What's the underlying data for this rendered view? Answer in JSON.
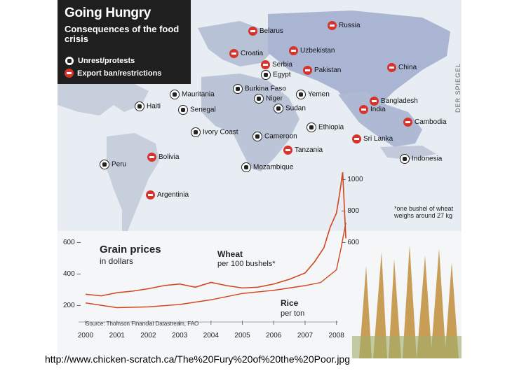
{
  "legend": {
    "title": "Going Hungry",
    "subtitle": "Consequences of the food crisis",
    "unrest_label": "Unrest/protests",
    "ban_label": "Export ban/restrictions"
  },
  "credit": "DER SPIEGEL",
  "countries": [
    {
      "name": "Russia",
      "symbol": "ban"
    },
    {
      "name": "Belarus",
      "symbol": "ban"
    },
    {
      "name": "Croatia",
      "symbol": "ban"
    },
    {
      "name": "Serbia",
      "symbol": "ban"
    },
    {
      "name": "Uzbekistan",
      "symbol": "ban"
    },
    {
      "name": "Pakistan",
      "symbol": "ban"
    },
    {
      "name": "Egypt",
      "symbol": "unrest"
    },
    {
      "name": "China",
      "symbol": "ban"
    },
    {
      "name": "Mauritania",
      "symbol": "unrest"
    },
    {
      "name": "Burkina Faso",
      "symbol": "unrest"
    },
    {
      "name": "Yemen",
      "symbol": "unrest"
    },
    {
      "name": "Niger",
      "symbol": "unrest"
    },
    {
      "name": "Haiti",
      "symbol": "unrest"
    },
    {
      "name": "Senegal",
      "symbol": "unrest"
    },
    {
      "name": "Sudan",
      "symbol": "unrest"
    },
    {
      "name": "Bangladesh",
      "symbol": "ban"
    },
    {
      "name": "India",
      "symbol": "ban"
    },
    {
      "name": "Ethiopia",
      "symbol": "unrest"
    },
    {
      "name": "Cambodia",
      "symbol": "ban"
    },
    {
      "name": "Ivory Coast",
      "symbol": "unrest"
    },
    {
      "name": "Cameroon",
      "symbol": "unrest"
    },
    {
      "name": "Sri Lanka",
      "symbol": "ban"
    },
    {
      "name": "Tanzania",
      "symbol": "ban"
    },
    {
      "name": "Indonesia",
      "symbol": "unrest"
    },
    {
      "name": "Peru",
      "symbol": "unrest"
    },
    {
      "name": "Bolivia",
      "symbol": "ban"
    },
    {
      "name": "Mozambique",
      "symbol": "unrest"
    },
    {
      "name": "Argentinia",
      "symbol": "ban"
    }
  ],
  "chart_data": {
    "type": "line",
    "title": "Grain prices",
    "subtitle": "in dollars",
    "source": "Source: Thomson Financial Datastream, FAO",
    "note": "*one bushel of wheat weighs around 27 kg",
    "x_ticks": [
      "2000",
      "2001",
      "2002",
      "2003",
      "2004",
      "2005",
      "2006",
      "2007",
      "2008"
    ],
    "left_axis_ticks": [
      "200",
      "400",
      "600"
    ],
    "right_axis_ticks": [
      "600",
      "800",
      "1000"
    ],
    "series": [
      {
        "name": "Wheat",
        "unit": "per 100 bushels*",
        "color": "#d2461e",
        "axis": "right",
        "x": [
          2000.0,
          2000.5,
          2001.0,
          2001.5,
          2002.0,
          2002.5,
          2003.0,
          2003.5,
          2004.0,
          2004.5,
          2005.0,
          2005.5,
          2006.0,
          2006.5,
          2007.0,
          2007.3,
          2007.6,
          2007.8,
          2008.0,
          2008.1,
          2008.2,
          2008.3
        ],
        "y": [
          265,
          255,
          275,
          285,
          300,
          320,
          330,
          310,
          340,
          320,
          305,
          310,
          330,
          360,
          400,
          470,
          560,
          690,
          780,
          900,
          1040,
          620
        ]
      },
      {
        "name": "Rice",
        "unit": "per ton",
        "color": "#d2461e",
        "axis": "left",
        "x": [
          2000.0,
          2001.0,
          2002.0,
          2003.0,
          2004.0,
          2005.0,
          2006.0,
          2007.0,
          2007.5,
          2008.0,
          2008.15,
          2008.3
        ],
        "y": [
          210,
          180,
          185,
          200,
          230,
          270,
          290,
          320,
          340,
          420,
          560,
          720
        ]
      }
    ]
  },
  "url": "http://www.chicken-scratch.ca/The%20Fury%20of%20the%20Poor.jpg"
}
